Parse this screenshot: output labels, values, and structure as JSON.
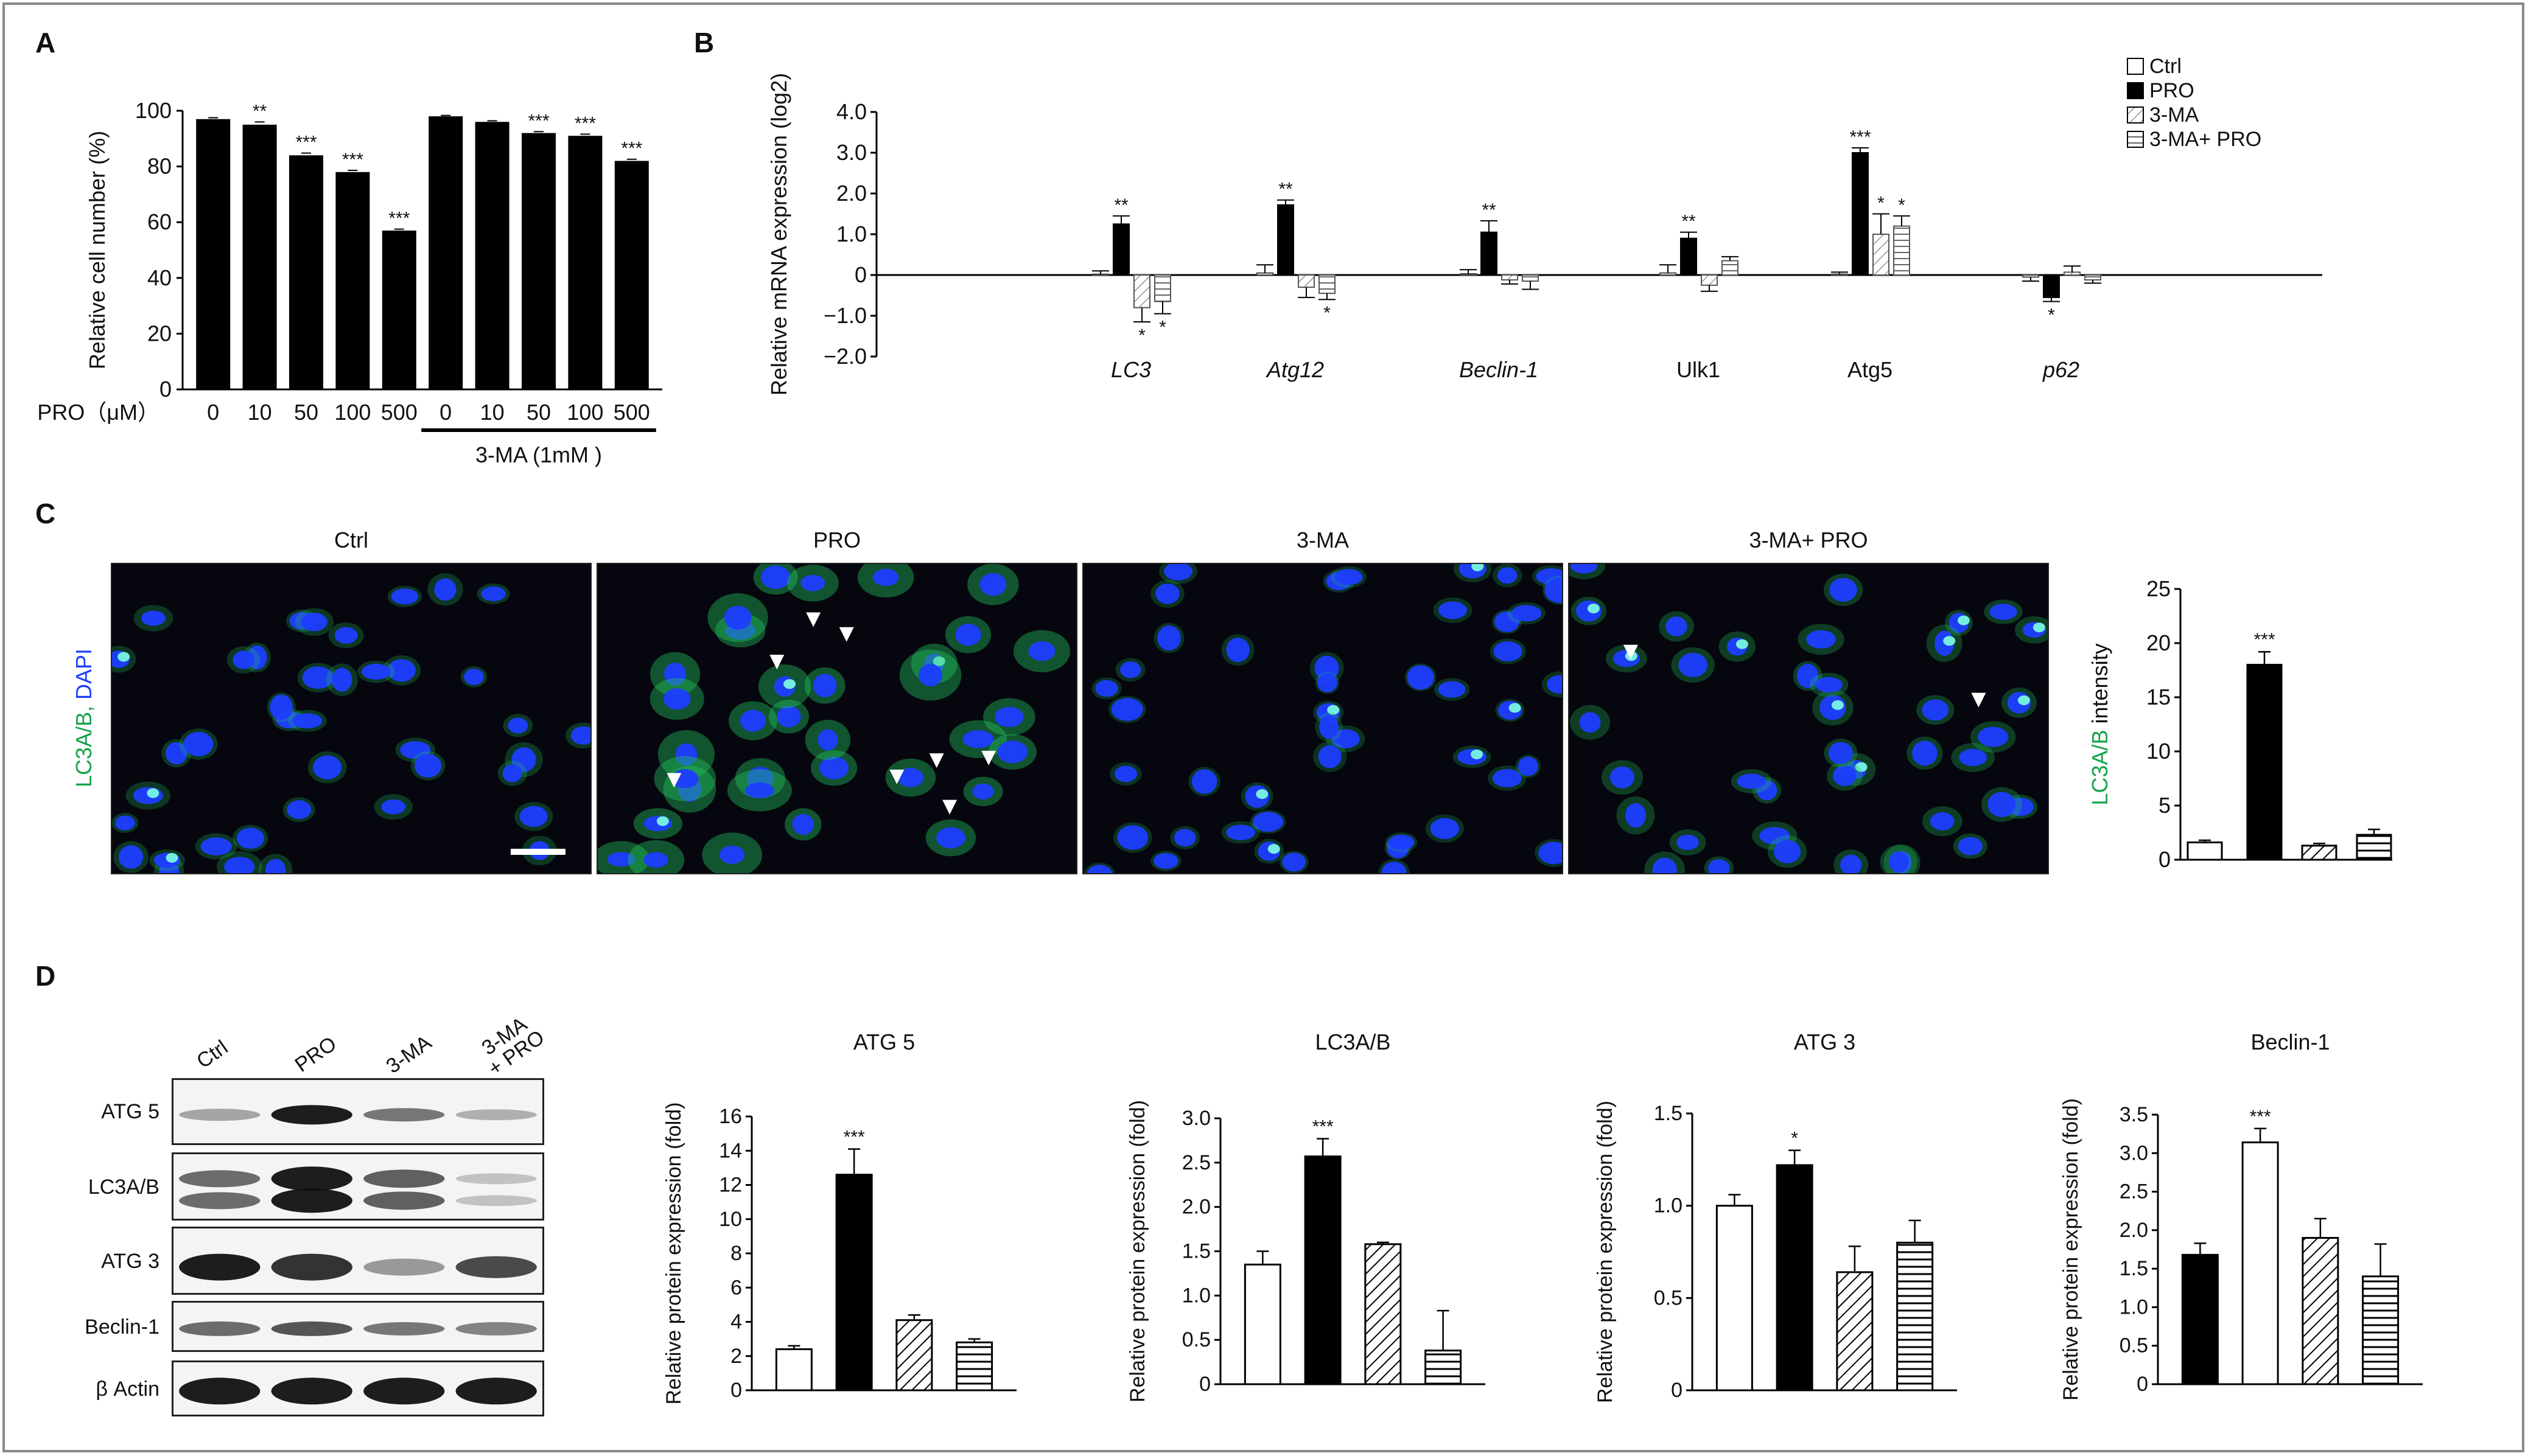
{
  "panel_letters": {
    "a": "A",
    "b": "B",
    "c": "C",
    "d": "D"
  },
  "colors": {
    "ctrl": "#ffffff",
    "pro": "#000000",
    "green_label": "#16a34a",
    "nucleus": "#1d3dff",
    "green_signal": "#22c55e"
  },
  "fills": {
    "ctrl": "open",
    "pro": "solid",
    "three_ma": "diagonal-hatch",
    "three_ma_pro": "horizontal-hatch"
  },
  "chart_data": [
    {
      "id": "A",
      "type": "bar",
      "ylabel": "Relative cell number (%)",
      "ylim": [
        0,
        100
      ],
      "yticks": [
        0,
        20,
        40,
        60,
        80,
        100
      ],
      "x_title": "PRO（μM）",
      "categories": [
        "0",
        "10",
        "50",
        "100",
        "500",
        "0",
        "10",
        "50",
        "100",
        "500"
      ],
      "values": [
        97,
        95,
        84,
        78,
        57,
        98,
        96,
        92,
        91,
        82
      ],
      "errors": [
        0.5,
        1,
        0.8,
        0.6,
        0.5,
        0.3,
        0.4,
        0.5,
        0.6,
        0.6
      ],
      "significance": [
        "",
        "**",
        "***",
        "***",
        "***",
        "",
        "",
        "***",
        "***",
        "***"
      ],
      "group_label": "3-MA (1mM )"
    },
    {
      "id": "B",
      "type": "bar",
      "ylabel": "Relative mRNA expression (log2)",
      "ylim": [
        -2.0,
        4.0
      ],
      "yticks": [
        "−2.0",
        "−1.0",
        "0",
        "1.0",
        "2.0",
        "3.0",
        "4.0"
      ],
      "ytick_values": [
        -2,
        -1,
        0,
        1,
        2,
        3,
        4
      ],
      "legend": [
        "Ctrl",
        "PRO",
        "3-MA",
        "3-MA+ PRO"
      ],
      "categories": [
        "LC3",
        "Atg12",
        "Beclin-1",
        "Ulk1",
        "Atg5",
        "p62"
      ],
      "italic_categories": [
        true,
        true,
        true,
        false,
        false,
        true
      ],
      "series": [
        {
          "name": "Ctrl",
          "values": [
            0.02,
            0.05,
            0.03,
            0.05,
            0.02,
            -0.05
          ],
          "errors": [
            0.08,
            0.2,
            0.1,
            0.2,
            0.05,
            0.1
          ]
        },
        {
          "name": "PRO",
          "values": [
            1.25,
            1.72,
            1.05,
            0.9,
            3.0,
            -0.55
          ],
          "errors": [
            0.2,
            0.12,
            0.28,
            0.15,
            0.12,
            0.1
          ]
        },
        {
          "name": "3-MA",
          "values": [
            -0.8,
            -0.3,
            -0.12,
            -0.25,
            1.0,
            0.07
          ],
          "errors": [
            0.35,
            0.25,
            0.1,
            0.15,
            0.5,
            0.15
          ]
        },
        {
          "name": "3-MA+ PRO",
          "values": [
            -0.65,
            -0.45,
            -0.15,
            0.35,
            1.2,
            -0.12
          ],
          "errors": [
            0.3,
            0.15,
            0.2,
            0.1,
            0.25,
            0.08
          ]
        }
      ],
      "significance": [
        {
          "category": "LC3",
          "series": "PRO",
          "text": "**"
        },
        {
          "category": "LC3",
          "series": "3-MA",
          "text": "*"
        },
        {
          "category": "LC3",
          "series": "3-MA+ PRO",
          "text": "*"
        },
        {
          "category": "Atg12",
          "series": "PRO",
          "text": "**"
        },
        {
          "category": "Atg12",
          "series": "3-MA+ PRO",
          "text": "*"
        },
        {
          "category": "Beclin-1",
          "series": "PRO",
          "text": "**"
        },
        {
          "category": "Ulk1",
          "series": "PRO",
          "text": "**"
        },
        {
          "category": "Atg5",
          "series": "PRO",
          "text": "***"
        },
        {
          "category": "Atg5",
          "series": "3-MA",
          "text": "*"
        },
        {
          "category": "Atg5",
          "series": "3-MA+ PRO",
          "text": "*"
        },
        {
          "category": "p62",
          "series": "PRO",
          "text": "*"
        }
      ]
    },
    {
      "id": "C",
      "type": "bar",
      "ylabel_parts": [
        "LC3A/B",
        " intensity"
      ],
      "ylim": [
        0,
        25
      ],
      "yticks": [
        0,
        5,
        10,
        15,
        20,
        25
      ],
      "categories": [
        "Ctrl",
        "PRO",
        "3-MA",
        "3-MA+ PRO"
      ],
      "values": [
        1.6,
        18.0,
        1.3,
        2.3
      ],
      "errors": [
        0.2,
        1.2,
        0.2,
        0.5
      ],
      "significance": [
        "",
        "***",
        "",
        ""
      ]
    },
    {
      "id": "D1",
      "type": "bar",
      "title": "ATG 5",
      "ylabel": "Relative protein expression (fold)",
      "ylim": [
        0,
        16
      ],
      "yticks": [
        "0",
        "2",
        "4",
        "6",
        "8",
        "10",
        "12",
        "14",
        "16"
      ],
      "ytick_values": [
        0,
        2,
        4,
        6,
        8,
        10,
        12,
        14,
        16
      ],
      "categories": [
        "Ctrl",
        "PRO",
        "3-MA",
        "3-MA+ PRO"
      ],
      "values": [
        2.4,
        12.6,
        4.1,
        2.8
      ],
      "errors": [
        0.2,
        1.5,
        0.3,
        0.2
      ],
      "fills": [
        "open",
        "solid",
        "diagonal-hatch",
        "horizontal-hatch"
      ],
      "significance": [
        "",
        "***",
        "",
        ""
      ]
    },
    {
      "id": "D2",
      "type": "bar",
      "title": "LC3A/B",
      "ylabel": "Relative protein expression (fold)",
      "ylim": [
        0,
        3.0
      ],
      "yticks": [
        "0",
        "0.5",
        "1.0",
        "1.5",
        "2.0",
        "2.5",
        "3.0"
      ],
      "ytick_values": [
        0,
        0.5,
        1.0,
        1.5,
        2.0,
        2.5,
        3.0
      ],
      "categories": [
        "Ctrl",
        "PRO",
        "3-MA",
        "3-MA+ PRO"
      ],
      "values": [
        1.35,
        2.57,
        1.58,
        0.38
      ],
      "errors": [
        0.15,
        0.2,
        0.02,
        0.45
      ],
      "fills": [
        "open",
        "solid",
        "diagonal-hatch",
        "horizontal-hatch"
      ],
      "significance": [
        "",
        "***",
        "",
        ""
      ]
    },
    {
      "id": "D3",
      "type": "bar",
      "title": "ATG 3",
      "ylabel": "Relative protein expression  (fold)",
      "ylim": [
        0,
        1.5
      ],
      "yticks": [
        "0",
        "0.5",
        "1.0",
        "1.5"
      ],
      "ytick_values": [
        0,
        0.5,
        1.0,
        1.5
      ],
      "categories": [
        "Ctrl",
        "PRO",
        "3-MA",
        "3-MA+ PRO"
      ],
      "values": [
        1.0,
        1.22,
        0.64,
        0.8
      ],
      "errors": [
        0.06,
        0.08,
        0.14,
        0.12
      ],
      "fills": [
        "open",
        "solid",
        "diagonal-hatch",
        "horizontal-hatch"
      ],
      "significance": [
        "",
        "*",
        "",
        ""
      ]
    },
    {
      "id": "D4",
      "type": "bar",
      "title": "Beclin-1",
      "ylabel": "Relative protein expression (fold)",
      "ylim": [
        0,
        3.5
      ],
      "yticks": [
        "0",
        "0.5",
        "1.0",
        "1.5",
        "2.0",
        "2.5",
        "3.0",
        "3.5"
      ],
      "ytick_values": [
        0,
        0.5,
        1.0,
        1.5,
        2.0,
        2.5,
        3.0,
        3.5
      ],
      "categories": [
        "PRO",
        "Ctrl",
        "3-MA",
        "3-MA+ PRO"
      ],
      "values": [
        1.68,
        3.14,
        1.9,
        1.4
      ],
      "errors": [
        0.15,
        0.18,
        0.25,
        0.42
      ],
      "fills": [
        "solid",
        "open",
        "diagonal-hatch",
        "horizontal-hatch"
      ],
      "significance": [
        "",
        "***",
        "",
        ""
      ]
    }
  ],
  "panel_c": {
    "ylabel_parts": [
      "LC3A/B,",
      " DAPI"
    ],
    "image_titles": [
      "Ctrl",
      "PRO",
      "3-MA",
      "3-MA+ PRO"
    ],
    "arrowheads_per_image": [
      0,
      8,
      0,
      2
    ]
  },
  "panel_d_blot": {
    "lane_labels": [
      "Ctrl",
      "PRO",
      "3-MA",
      "3-MA\n+ PRO"
    ],
    "lane_label_lines": [
      [
        "Ctrl"
      ],
      [
        "PRO"
      ],
      [
        "3-MA"
      ],
      [
        "3-MA",
        "+ PRO"
      ]
    ],
    "row_labels": [
      "ATG 5",
      "LC3A/B",
      "ATG 3",
      "Beclin-1",
      "β Actin"
    ]
  }
}
